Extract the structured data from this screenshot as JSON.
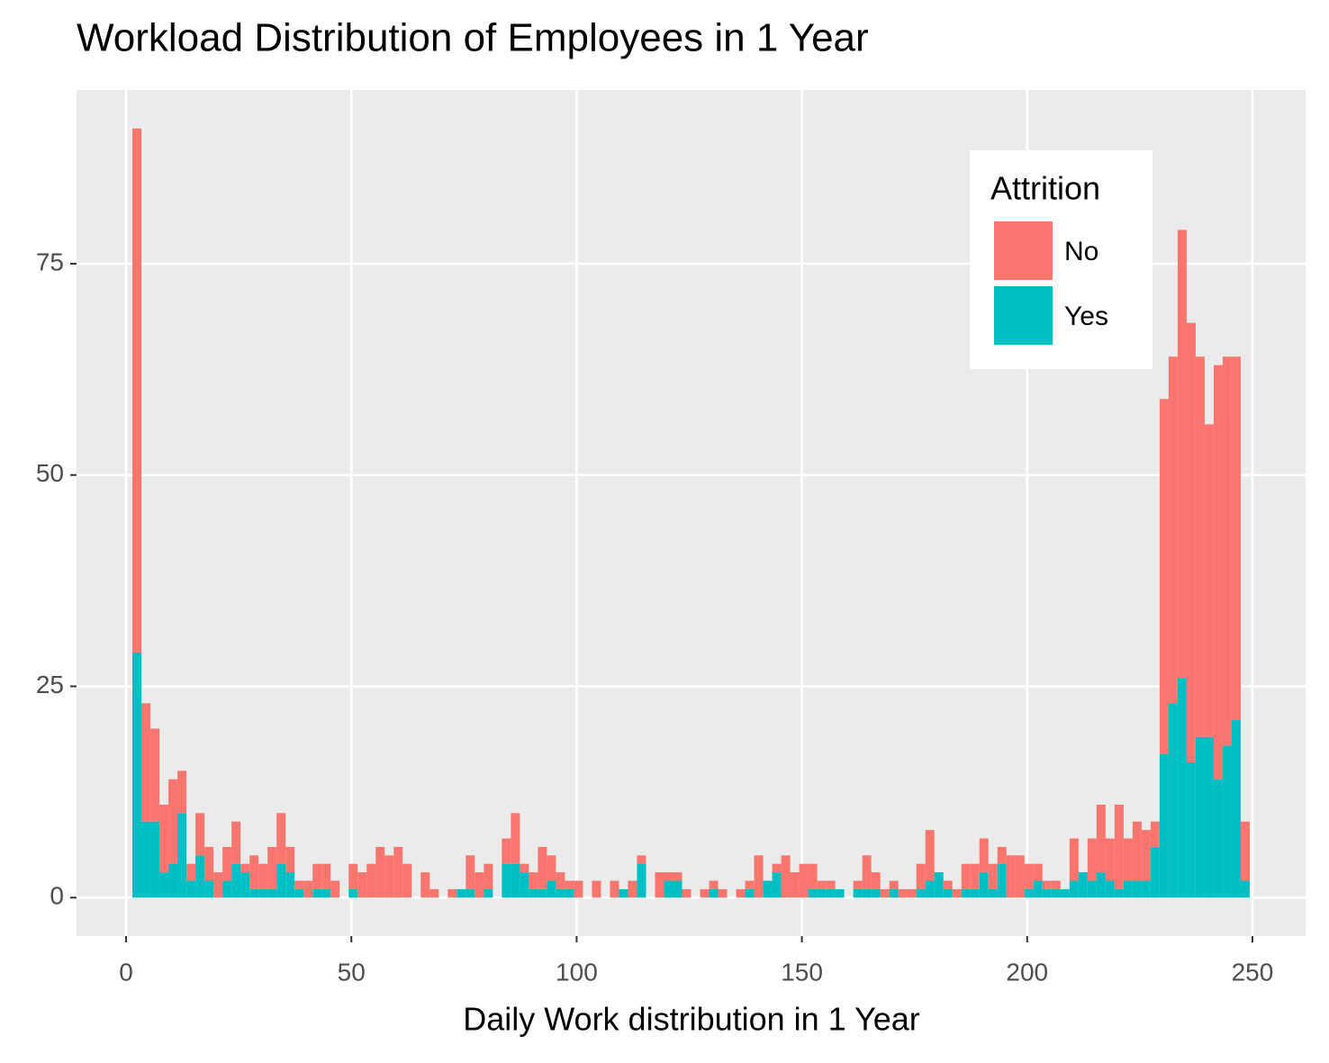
{
  "chart_data": {
    "type": "histogram",
    "title": "Workload Distribution of Employees in 1 Year",
    "x_label": "Daily Work distribution in 1 Year",
    "stacked": true,
    "grid": true,
    "legend": "inside-top-right",
    "legend_title": "Attrition",
    "xlim": [
      -11,
      261.8
    ],
    "ylim": [
      -4.55,
      95.55
    ],
    "xticks": [
      0,
      50,
      100,
      150,
      200,
      250
    ],
    "yticks": [
      0,
      25,
      50,
      75
    ],
    "bins": [
      1.4,
      3.4,
      5.4,
      7.4,
      9.4,
      11.4,
      13.4,
      15.4,
      17.4,
      19.4,
      21.4,
      23.4,
      25.4,
      27.4,
      29.4,
      31.4,
      33.4,
      35.4,
      37.4,
      39.4,
      41.4,
      43.4,
      45.4,
      47.4,
      49.4,
      51.4,
      53.4,
      55.4,
      57.4,
      59.4,
      61.4,
      63.4,
      65.4,
      67.4,
      69.4,
      71.4,
      73.4,
      75.4,
      77.4,
      79.4,
      81.4,
      83.4,
      85.4,
      87.4,
      89.4,
      91.4,
      93.4,
      95.4,
      97.4,
      99.4,
      101.4,
      103.4,
      105.4,
      107.4,
      109.4,
      111.4,
      113.4,
      115.4,
      117.4,
      119.4,
      121.4,
      123.4,
      125.4,
      127.4,
      129.4,
      131.4,
      133.4,
      135.4,
      137.4,
      139.4,
      141.4,
      143.4,
      145.4,
      147.4,
      149.4,
      151.4,
      153.4,
      155.4,
      157.4,
      159.4,
      161.4,
      163.4,
      165.4,
      167.4,
      169.4,
      171.4,
      173.4,
      175.4,
      177.4,
      179.4,
      181.4,
      183.4,
      185.4,
      187.4,
      189.4,
      191.4,
      193.4,
      195.4,
      197.4,
      199.4,
      201.4,
      203.4,
      205.4,
      207.4,
      209.4,
      211.4,
      213.4,
      215.4,
      217.4,
      219.4,
      221.4,
      223.4,
      225.4,
      227.4,
      229.4,
      231.4,
      233.4,
      235.4,
      237.4,
      239.4,
      241.4,
      243.4,
      245.4,
      247.4,
      249.4
    ],
    "series": [
      {
        "name": "No",
        "color": "#F8766D",
        "values": [
          62,
          14,
          11,
          8,
          10,
          5,
          2,
          5,
          4,
          3,
          4,
          5,
          1,
          4,
          3,
          5,
          6,
          3,
          1,
          2,
          3,
          3,
          2,
          0,
          3,
          3,
          4,
          6,
          5,
          6,
          4,
          0,
          3,
          1,
          0,
          1,
          0,
          4,
          3,
          3,
          0,
          3,
          6,
          1,
          2,
          5,
          3,
          2,
          1,
          2,
          0,
          2,
          0,
          2,
          0,
          2,
          1,
          0,
          3,
          1,
          1,
          1,
          0,
          1,
          1,
          1,
          0,
          1,
          1,
          5,
          0,
          1,
          5,
          3,
          4,
          3,
          1,
          1,
          0,
          0,
          1,
          4,
          2,
          1,
          1,
          1,
          1,
          3,
          6,
          0,
          1,
          1,
          3,
          3,
          4,
          3,
          2,
          5,
          5,
          3,
          2,
          1,
          1,
          0,
          5,
          0,
          5,
          8,
          5,
          10,
          5,
          7,
          6,
          3,
          42,
          41,
          53,
          52,
          45,
          37,
          49,
          46,
          43,
          7
        ]
      },
      {
        "name": "Yes",
        "color": "#00BFC4",
        "values": [
          29,
          9,
          9,
          3,
          4,
          10,
          2,
          5,
          2,
          0,
          2,
          4,
          3,
          1,
          1,
          1,
          4,
          3,
          1,
          0,
          1,
          1,
          0,
          0,
          1,
          0,
          0,
          0,
          0,
          0,
          0,
          0,
          0,
          0,
          0,
          0,
          1,
          1,
          0,
          1,
          0,
          4,
          4,
          3,
          1,
          1,
          2,
          1,
          1,
          0,
          0,
          0,
          0,
          0,
          1,
          0,
          4,
          0,
          0,
          2,
          2,
          0,
          0,
          0,
          1,
          0,
          0,
          0,
          1,
          0,
          2,
          3,
          0,
          0,
          0,
          1,
          1,
          1,
          1,
          0,
          1,
          1,
          1,
          0,
          1,
          0,
          0,
          1,
          2,
          3,
          1,
          0,
          1,
          1,
          3,
          1,
          4,
          0,
          0,
          1,
          2,
          1,
          1,
          1,
          2,
          3,
          2,
          3,
          2,
          1,
          2,
          2,
          2,
          6,
          17,
          23,
          26,
          16,
          19,
          19,
          14,
          18,
          21,
          2
        ]
      }
    ]
  }
}
